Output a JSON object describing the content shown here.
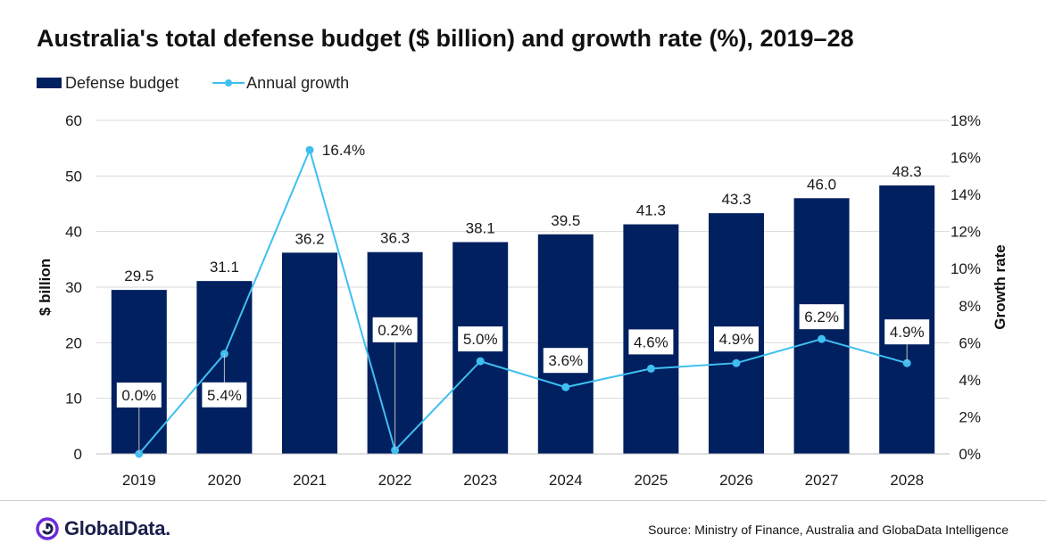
{
  "title": "Australia's total defense budget ($ billion) and growth rate (%), 2019–28",
  "source": "Source: Ministry of Finance, Australia and GlobaData Intelligence",
  "logo": {
    "text": "GlobalData.",
    "icon": "globaldata-logo-icon"
  },
  "colors": {
    "bar": "#002060",
    "line": "#3fbff0",
    "grid": "#d9d9d9",
    "axis": "#bfbfbf"
  },
  "chart_data": {
    "type": "bar",
    "categories": [
      "2019",
      "2020",
      "2021",
      "2022",
      "2023",
      "2024",
      "2025",
      "2026",
      "2027",
      "2028"
    ],
    "series": [
      {
        "name": "Defense budget",
        "type": "bar",
        "axis": "left",
        "values": [
          29.5,
          31.1,
          36.2,
          36.3,
          38.1,
          39.5,
          41.3,
          43.3,
          46.0,
          48.3
        ],
        "labels": [
          "29.5",
          "31.1",
          "36.2",
          "36.3",
          "38.1",
          "39.5",
          "41.3",
          "43.3",
          "46.0",
          "48.3"
        ]
      },
      {
        "name": "Annual growth",
        "type": "line",
        "axis": "right",
        "values": [
          0.0,
          5.4,
          16.4,
          0.2,
          5.0,
          3.6,
          4.6,
          4.9,
          6.2,
          4.9
        ],
        "labels": [
          "0.0%",
          "5.4%",
          "16.4%",
          "0.2%",
          "5.0%",
          "3.6%",
          "4.6%",
          "4.9%",
          "6.2%",
          "4.9%"
        ]
      }
    ],
    "ylabel": "$ billion",
    "ylabel_right": "Growth rate",
    "ylim": [
      0,
      60
    ],
    "ylim_right": [
      0,
      18
    ],
    "yticks": [
      "0",
      "10",
      "20",
      "30",
      "40",
      "50",
      "60"
    ],
    "yticks_right": [
      "0%",
      "2%",
      "4%",
      "6%",
      "8%",
      "10%",
      "12%",
      "14%",
      "16%",
      "18%"
    ],
    "grid": true,
    "legend": "top-left"
  }
}
